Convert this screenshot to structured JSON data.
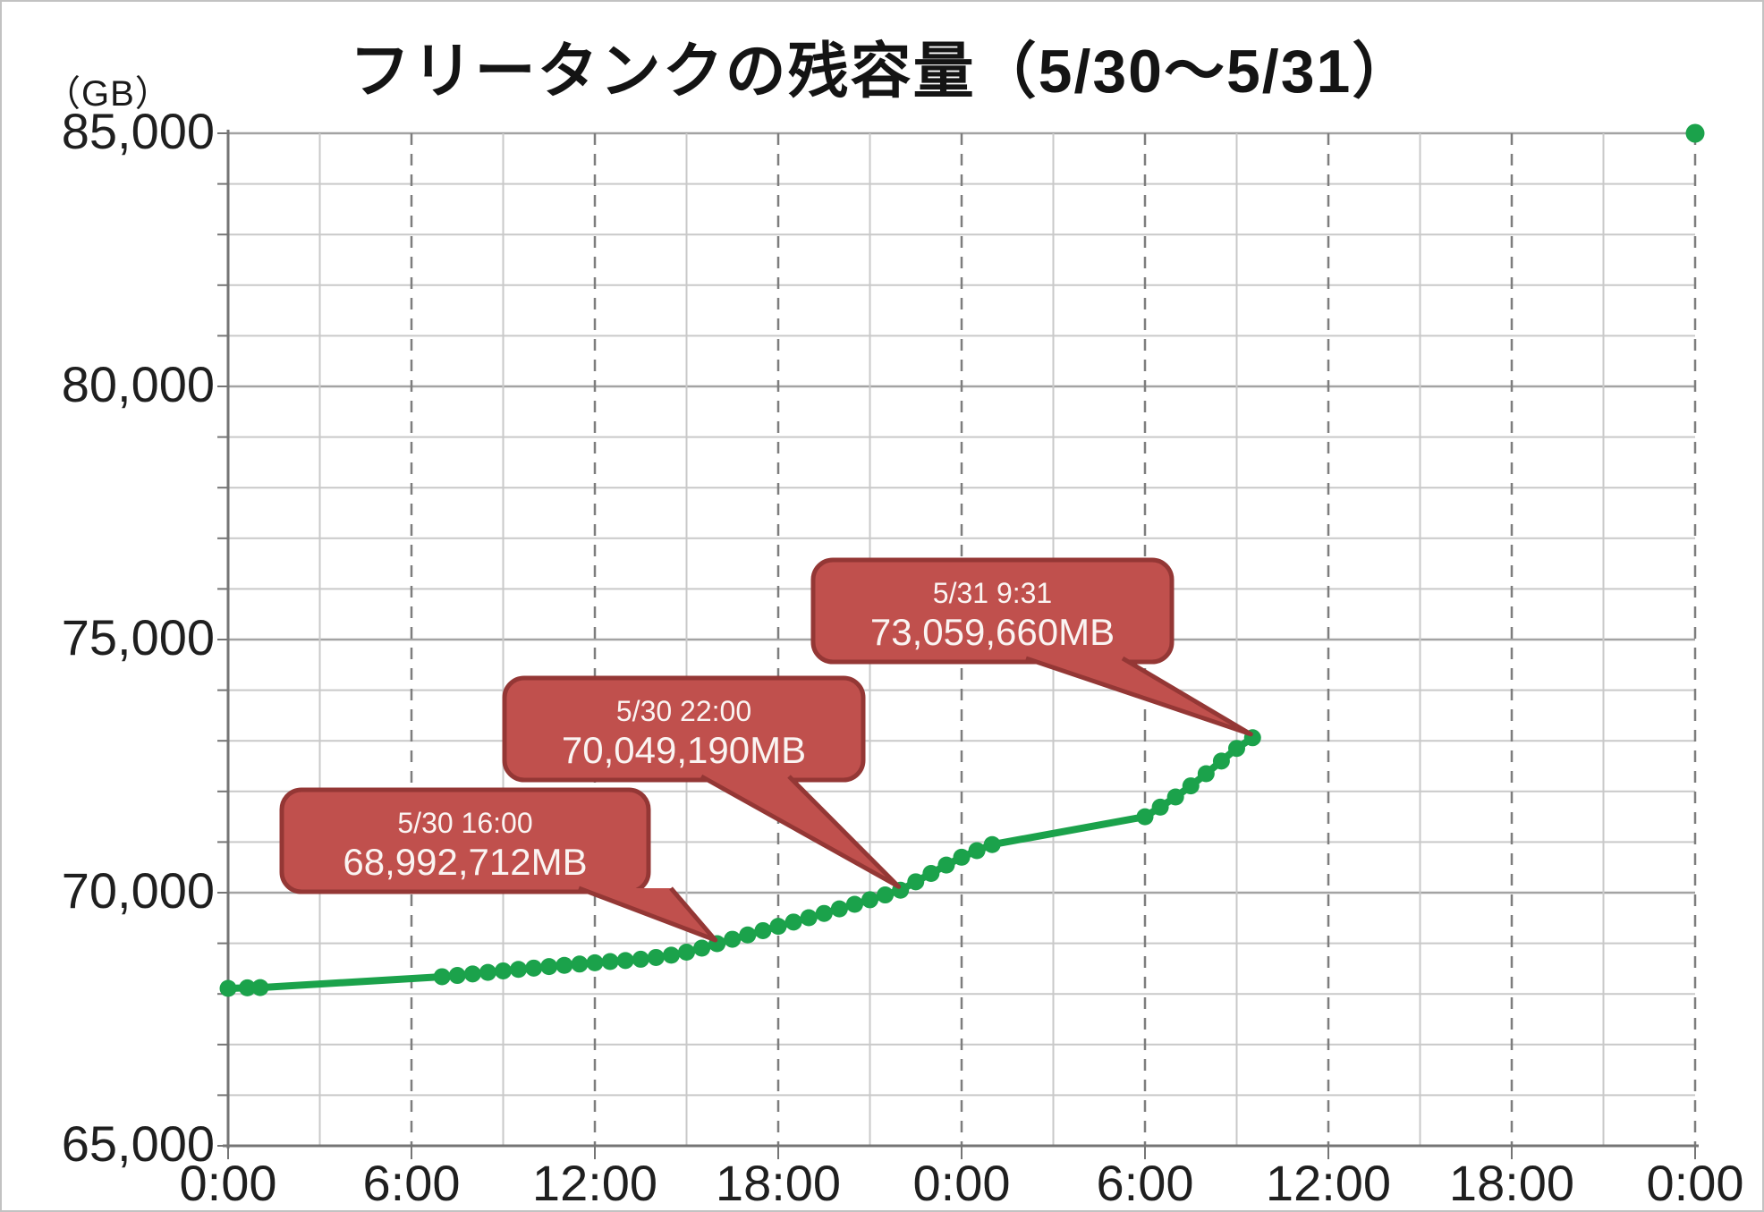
{
  "chart": {
    "title": "フリータンクの残容量（5/30～5/31）",
    "y_unit": "（GB）"
  },
  "chart_data": {
    "type": "line",
    "title": "フリータンクの残容量（5/30～5/31）",
    "ylabel": "（GB）",
    "xlabel": "",
    "x_unit_note": "hours elapsed from 5/30 0:00, two-day span",
    "x_tick_hours": [
      0,
      6,
      12,
      18,
      24,
      30,
      36,
      42,
      48
    ],
    "x_tick_labels": [
      "0:00",
      "6:00",
      "12:00",
      "18:00",
      "0:00",
      "6:00",
      "12:00",
      "18:00",
      "0:00"
    ],
    "x_minor_step_hours": 3,
    "xlim": [
      0,
      48
    ],
    "ylim": [
      65000,
      85000
    ],
    "y_major_step": 5000,
    "y_minor_step": 1000,
    "y_tick_labels": [
      "65,000",
      "70,000",
      "75,000",
      "80,000",
      "85,000"
    ],
    "grid": true,
    "legend": "none",
    "points": [
      {
        "t": 0.0,
        "v": 68110
      },
      {
        "t": 0.63,
        "v": 68120
      },
      {
        "t": 1.05,
        "v": 68125
      },
      {
        "t": 7.0,
        "v": 68340
      },
      {
        "t": 7.5,
        "v": 68365
      },
      {
        "t": 8.0,
        "v": 68395
      },
      {
        "t": 8.5,
        "v": 68425
      },
      {
        "t": 9.0,
        "v": 68455
      },
      {
        "t": 9.5,
        "v": 68485
      },
      {
        "t": 10.0,
        "v": 68510
      },
      {
        "t": 10.5,
        "v": 68540
      },
      {
        "t": 11.0,
        "v": 68565
      },
      {
        "t": 11.5,
        "v": 68590
      },
      {
        "t": 12.0,
        "v": 68615
      },
      {
        "t": 12.5,
        "v": 68640
      },
      {
        "t": 13.0,
        "v": 68660
      },
      {
        "t": 13.5,
        "v": 68685
      },
      {
        "t": 14.0,
        "v": 68720
      },
      {
        "t": 14.5,
        "v": 68765
      },
      {
        "t": 15.0,
        "v": 68825
      },
      {
        "t": 15.5,
        "v": 68905
      },
      {
        "t": 16.0,
        "v": 68993
      },
      {
        "t": 16.5,
        "v": 69080
      },
      {
        "t": 17.0,
        "v": 69165
      },
      {
        "t": 17.5,
        "v": 69250
      },
      {
        "t": 18.0,
        "v": 69335
      },
      {
        "t": 18.5,
        "v": 69420
      },
      {
        "t": 19.0,
        "v": 69505
      },
      {
        "t": 19.5,
        "v": 69590
      },
      {
        "t": 20.0,
        "v": 69680
      },
      {
        "t": 20.5,
        "v": 69770
      },
      {
        "t": 21.0,
        "v": 69860
      },
      {
        "t": 21.5,
        "v": 69955
      },
      {
        "t": 22.0,
        "v": 70049
      },
      {
        "t": 22.5,
        "v": 70215
      },
      {
        "t": 23.0,
        "v": 70380
      },
      {
        "t": 23.5,
        "v": 70545
      },
      {
        "t": 24.0,
        "v": 70700
      },
      {
        "t": 24.5,
        "v": 70830
      },
      {
        "t": 25.0,
        "v": 70950
      },
      {
        "t": 30.0,
        "v": 71500
      },
      {
        "t": 30.5,
        "v": 71690
      },
      {
        "t": 31.0,
        "v": 71890
      },
      {
        "t": 31.5,
        "v": 72110
      },
      {
        "t": 32.0,
        "v": 72350
      },
      {
        "t": 32.5,
        "v": 72600
      },
      {
        "t": 33.0,
        "v": 72850
      },
      {
        "t": 33.52,
        "v": 73060
      }
    ],
    "isolated_points": [
      {
        "t": 48,
        "v": 85000
      }
    ],
    "callouts": [
      {
        "date": "5/30 16:00",
        "value": "68,992,712MB",
        "anchor_t": 16.0,
        "anchor_v": 68993
      },
      {
        "date": "5/30 22:00",
        "value": "70,049,190MB",
        "anchor_t": 22.0,
        "anchor_v": 70049
      },
      {
        "date": "5/31 9:31",
        "value": "73,059,660MB",
        "anchor_t": 33.52,
        "anchor_v": 73060
      }
    ],
    "colors": {
      "series_green": "#1ba24b",
      "callout_fill": "#c0504d",
      "callout_border": "#943735",
      "callout_text": "#faf4f2",
      "grid_minor": "#c9c9c9",
      "grid_major": "#a3a3a3",
      "grid_dashed": "#7d7d7d",
      "axis": "#757575",
      "tick_label": "#1f1f1f"
    }
  }
}
